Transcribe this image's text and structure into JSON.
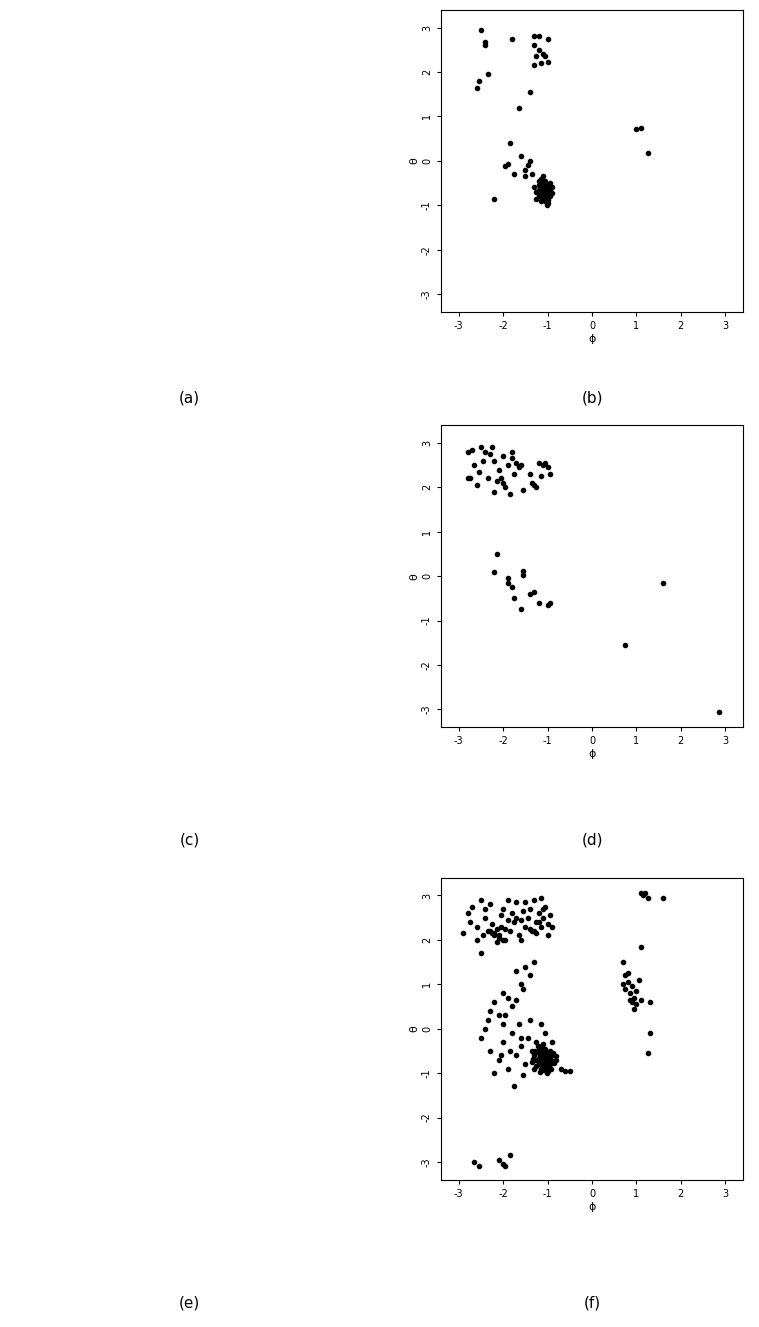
{
  "images": [
    {
      "caption": "(a)"
    },
    {
      "caption": "(c)"
    },
    {
      "caption": "(e)"
    }
  ],
  "chart_data": [
    {
      "type": "scatter",
      "caption": "(b)",
      "x_label": "ϕ",
      "y_label": "θ",
      "color": "#000000",
      "marker": "o",
      "xlim": [
        -3.4,
        3.4
      ],
      "ylim": [
        -3.4,
        3.4
      ],
      "xticks": [
        -3,
        -2,
        -1,
        0,
        1,
        2,
        3
      ],
      "yticks": [
        -3,
        -2,
        -1,
        0,
        1,
        2,
        3
      ],
      "points": [
        [
          -2.5,
          2.95
        ],
        [
          -2.6,
          1.65
        ],
        [
          -2.55,
          1.8
        ],
        [
          -2.4,
          2.6
        ],
        [
          -2.4,
          2.68
        ],
        [
          -2.35,
          1.95
        ],
        [
          -1.8,
          2.75
        ],
        [
          -1.3,
          2.8
        ],
        [
          -1.2,
          2.82
        ],
        [
          -1.0,
          2.75
        ],
        [
          -1.3,
          2.6
        ],
        [
          -1.25,
          2.35
        ],
        [
          -1.15,
          2.2
        ],
        [
          -1.05,
          2.35
        ],
        [
          -1.0,
          2.22
        ],
        [
          -1.1,
          2.4
        ],
        [
          -1.3,
          2.15
        ],
        [
          -1.4,
          1.55
        ],
        [
          -1.65,
          1.2
        ],
        [
          -1.2,
          2.5
        ],
        [
          -1.85,
          0.4
        ],
        [
          -1.9,
          -0.08
        ],
        [
          -1.95,
          -0.12
        ],
        [
          -1.6,
          0.1
        ],
        [
          -1.75,
          -0.3
        ],
        [
          -1.5,
          -0.2
        ],
        [
          -1.5,
          -0.35
        ],
        [
          -1.45,
          -0.1
        ],
        [
          -1.4,
          0.0
        ],
        [
          -1.35,
          -0.3
        ],
        [
          -2.2,
          -0.85
        ],
        [
          -1.1,
          -0.6
        ],
        [
          -1.05,
          -0.7
        ],
        [
          -1.15,
          -0.65
        ],
        [
          -1.0,
          -0.75
        ],
        [
          -1.2,
          -0.55
        ],
        [
          -0.95,
          -0.8
        ],
        [
          -1.1,
          -0.5
        ],
        [
          -1.05,
          -0.62
        ],
        [
          -1.15,
          -0.78
        ],
        [
          -1.25,
          -0.7
        ],
        [
          -1.0,
          -0.58
        ],
        [
          -0.9,
          -0.72
        ],
        [
          -1.1,
          -0.85
        ],
        [
          -1.2,
          -0.45
        ],
        [
          -1.05,
          -0.9
        ],
        [
          -1.15,
          -0.4
        ],
        [
          -0.95,
          -0.65
        ],
        [
          -1.1,
          -0.68
        ],
        [
          -1.0,
          -0.88
        ],
        [
          -1.2,
          -0.8
        ],
        [
          -1.3,
          -0.6
        ],
        [
          -1.05,
          -0.52
        ],
        [
          -1.1,
          -0.35
        ],
        [
          -0.9,
          -0.6
        ],
        [
          -1.15,
          -0.72
        ],
        [
          -1.0,
          -0.95
        ],
        [
          -1.05,
          -0.8
        ],
        [
          -1.2,
          -0.65
        ],
        [
          -1.1,
          -0.75
        ],
        [
          -0.95,
          -0.5
        ],
        [
          -1.25,
          -0.85
        ],
        [
          -1.1,
          -0.58
        ],
        [
          -1.0,
          -0.7
        ],
        [
          -1.15,
          -0.9
        ],
        [
          -1.05,
          -0.45
        ],
        [
          -1.2,
          -0.75
        ],
        [
          -0.98,
          -0.82
        ],
        [
          -1.12,
          -0.62
        ],
        [
          -1.08,
          -0.68
        ],
        [
          -1.02,
          -1.0
        ],
        [
          1.0,
          0.72
        ],
        [
          1.1,
          0.73
        ],
        [
          1.25,
          0.18
        ]
      ]
    },
    {
      "type": "scatter",
      "caption": "(d)",
      "x_label": "ϕ",
      "y_label": "θ",
      "color": "#000000",
      "marker": "o",
      "xlim": [
        -3.4,
        3.4
      ],
      "ylim": [
        -3.4,
        3.4
      ],
      "xticks": [
        -3,
        -2,
        -1,
        0,
        1,
        2,
        3
      ],
      "yticks": [
        -3,
        -2,
        -1,
        0,
        1,
        2,
        3
      ],
      "points": [
        [
          -2.8,
          2.8
        ],
        [
          -2.7,
          2.85
        ],
        [
          -2.6,
          2.05
        ],
        [
          -2.5,
          2.9
        ],
        [
          -2.4,
          2.8
        ],
        [
          -2.3,
          2.75
        ],
        [
          -2.2,
          2.6
        ],
        [
          -2.1,
          2.4
        ],
        [
          -2.0,
          2.7
        ],
        [
          -1.9,
          2.5
        ],
        [
          -1.8,
          2.65
        ],
        [
          -1.7,
          2.55
        ],
        [
          -1.6,
          2.5
        ],
        [
          -2.75,
          2.2
        ],
        [
          -2.55,
          2.35
        ],
        [
          -2.35,
          2.2
        ],
        [
          -2.15,
          2.15
        ],
        [
          -1.95,
          2.0
        ],
        [
          -1.75,
          2.3
        ],
        [
          -1.55,
          1.95
        ],
        [
          -2.65,
          2.5
        ],
        [
          -2.45,
          2.6
        ],
        [
          -2.25,
          2.9
        ],
        [
          -2.05,
          2.2
        ],
        [
          -1.85,
          1.85
        ],
        [
          -1.65,
          2.45
        ],
        [
          -2.2,
          1.9
        ],
        [
          -2.0,
          2.1
        ],
        [
          -1.8,
          2.8
        ],
        [
          -1.3,
          2.05
        ],
        [
          -1.2,
          2.55
        ],
        [
          -1.1,
          2.5
        ],
        [
          -1.0,
          2.45
        ],
        [
          -0.95,
          2.3
        ],
        [
          -1.15,
          2.25
        ],
        [
          -1.25,
          2.0
        ],
        [
          -1.05,
          2.55
        ],
        [
          -1.4,
          2.3
        ],
        [
          -1.35,
          2.1
        ],
        [
          -2.8,
          2.2
        ],
        [
          -2.15,
          0.5
        ],
        [
          -2.2,
          0.1
        ],
        [
          -1.9,
          -0.05
        ],
        [
          -1.8,
          -0.25
        ],
        [
          -1.75,
          -0.5
        ],
        [
          -1.6,
          -0.75
        ],
        [
          -1.55,
          0.12
        ],
        [
          -1.55,
          0.02
        ],
        [
          -1.4,
          -0.4
        ],
        [
          -1.3,
          -0.35
        ],
        [
          -1.2,
          -0.6
        ],
        [
          -1.0,
          -0.65
        ],
        [
          -0.95,
          -0.6
        ],
        [
          -1.9,
          -0.15
        ],
        [
          1.6,
          -0.15
        ],
        [
          0.75,
          -1.55
        ],
        [
          2.85,
          -3.05
        ]
      ]
    },
    {
      "type": "scatter",
      "caption": "(f)",
      "x_label": "ϕ",
      "y_label": "θ",
      "color": "#000000",
      "marker": "o",
      "xlim": [
        -3.4,
        3.4
      ],
      "ylim": [
        -3.4,
        3.4
      ],
      "xticks": [
        -3,
        -2,
        -1,
        0,
        1,
        2,
        3
      ],
      "yticks": [
        -3,
        -2,
        -1,
        0,
        1,
        2,
        3
      ],
      "points": [
        [
          -2.9,
          2.15
        ],
        [
          -2.8,
          2.6
        ],
        [
          -2.75,
          2.4
        ],
        [
          -2.7,
          2.75
        ],
        [
          -2.6,
          2.3
        ],
        [
          -2.5,
          2.9
        ],
        [
          -2.45,
          2.1
        ],
        [
          -2.4,
          2.5
        ],
        [
          -2.35,
          2.2
        ],
        [
          -2.3,
          2.8
        ],
        [
          -2.25,
          2.15
        ],
        [
          -2.2,
          2.1
        ],
        [
          -2.15,
          2.25
        ],
        [
          -2.1,
          2.05
        ],
        [
          -2.05,
          2.3
        ],
        [
          -2.0,
          2.7
        ],
        [
          -1.95,
          2.0
        ],
        [
          -1.9,
          2.9
        ],
        [
          -1.85,
          2.2
        ],
        [
          -1.8,
          2.6
        ],
        [
          -1.75,
          2.4
        ],
        [
          -1.7,
          2.85
        ],
        [
          -1.65,
          2.1
        ],
        [
          -1.6,
          2.45
        ],
        [
          -1.55,
          2.65
        ],
        [
          -1.5,
          2.3
        ],
        [
          -1.45,
          2.5
        ],
        [
          -1.4,
          2.7
        ],
        [
          -1.35,
          2.2
        ],
        [
          -1.3,
          2.9
        ],
        [
          -1.25,
          2.4
        ],
        [
          -1.2,
          2.6
        ],
        [
          -1.15,
          2.3
        ],
        [
          -1.1,
          2.5
        ],
        [
          -1.05,
          2.75
        ],
        [
          -1.0,
          2.35
        ],
        [
          -0.95,
          2.55
        ],
        [
          -0.9,
          2.3
        ],
        [
          -2.3,
          2.2
        ],
        [
          -2.2,
          2.15
        ],
        [
          -2.1,
          2.1
        ],
        [
          -2.0,
          2.0
        ],
        [
          -1.9,
          2.45
        ],
        [
          -1.3,
          2.2
        ],
        [
          -1.2,
          2.4
        ],
        [
          -1.1,
          2.7
        ],
        [
          -1.0,
          2.1
        ],
        [
          -2.4,
          2.7
        ],
        [
          -2.6,
          2.0
        ],
        [
          -2.25,
          2.35
        ],
        [
          -2.15,
          1.95
        ],
        [
          -1.4,
          2.25
        ],
        [
          -1.5,
          2.85
        ],
        [
          -1.6,
          2.0
        ],
        [
          -1.7,
          2.5
        ],
        [
          -2.5,
          1.7
        ],
        [
          -1.15,
          2.95
        ],
        [
          -1.25,
          2.15
        ],
        [
          -2.05,
          2.55
        ],
        [
          -1.95,
          2.25
        ],
        [
          -1.5,
          1.4
        ],
        [
          -1.4,
          1.2
        ],
        [
          -1.6,
          1.0
        ],
        [
          -1.3,
          1.5
        ],
        [
          -1.7,
          1.3
        ],
        [
          -2.0,
          0.8
        ],
        [
          -1.9,
          0.7
        ],
        [
          -2.2,
          0.6
        ],
        [
          -1.8,
          0.5
        ],
        [
          -2.1,
          0.3
        ],
        [
          -2.3,
          0.4
        ],
        [
          -2.0,
          0.1
        ],
        [
          -2.4,
          0.0
        ],
        [
          -1.7,
          0.65
        ],
        [
          -1.55,
          0.9
        ],
        [
          -2.5,
          -0.2
        ],
        [
          -2.3,
          -0.5
        ],
        [
          -2.1,
          -0.7
        ],
        [
          -2.0,
          -0.3
        ],
        [
          -1.9,
          -0.9
        ],
        [
          -1.8,
          -0.1
        ],
        [
          -1.7,
          -0.6
        ],
        [
          -1.6,
          -0.4
        ],
        [
          -1.5,
          -0.8
        ],
        [
          -1.45,
          -0.2
        ],
        [
          -1.4,
          0.2
        ],
        [
          -1.35,
          -0.5
        ],
        [
          -1.3,
          -0.9
        ],
        [
          -1.75,
          -1.3
        ],
        [
          -2.2,
          -1.0
        ],
        [
          -1.55,
          -1.05
        ],
        [
          -1.65,
          0.1
        ],
        [
          -1.85,
          -0.5
        ],
        [
          -2.05,
          -0.6
        ],
        [
          -1.25,
          -0.3
        ],
        [
          -0.7,
          -0.9
        ],
        [
          -0.6,
          -0.95
        ],
        [
          -0.8,
          -0.7
        ],
        [
          -0.5,
          -0.95
        ],
        [
          -1.95,
          0.3
        ],
        [
          -2.35,
          0.2
        ],
        [
          -1.6,
          -0.2
        ],
        [
          -1.15,
          0.1
        ],
        [
          -1.05,
          -0.1
        ],
        [
          -0.9,
          -0.3
        ],
        [
          -1.1,
          -0.6
        ],
        [
          -1.05,
          -0.7
        ],
        [
          -1.15,
          -0.65
        ],
        [
          -1.0,
          -0.75
        ],
        [
          -1.2,
          -0.55
        ],
        [
          -0.95,
          -0.8
        ],
        [
          -1.1,
          -0.5
        ],
        [
          -1.05,
          -0.62
        ],
        [
          -1.15,
          -0.78
        ],
        [
          -1.25,
          -0.7
        ],
        [
          -1.0,
          -0.58
        ],
        [
          -0.9,
          -0.72
        ],
        [
          -1.1,
          -0.85
        ],
        [
          -1.2,
          -0.45
        ],
        [
          -1.05,
          -0.9
        ],
        [
          -1.15,
          -0.4
        ],
        [
          -0.95,
          -0.65
        ],
        [
          -1.1,
          -0.68
        ],
        [
          -1.0,
          -0.88
        ],
        [
          -1.2,
          -0.8
        ],
        [
          -1.3,
          -0.6
        ],
        [
          -1.05,
          -0.52
        ],
        [
          -1.1,
          -0.35
        ],
        [
          -0.9,
          -0.6
        ],
        [
          -1.15,
          -0.72
        ],
        [
          -1.0,
          -0.95
        ],
        [
          -1.05,
          -0.8
        ],
        [
          -1.2,
          -0.65
        ],
        [
          -1.1,
          -0.75
        ],
        [
          -0.95,
          -0.5
        ],
        [
          -1.25,
          -0.85
        ],
        [
          -1.1,
          -0.58
        ],
        [
          -1.0,
          -0.7
        ],
        [
          -1.15,
          -0.9
        ],
        [
          -1.05,
          -0.45
        ],
        [
          -1.2,
          -0.75
        ],
        [
          -0.98,
          -0.82
        ],
        [
          -1.12,
          -0.62
        ],
        [
          -1.08,
          -0.68
        ],
        [
          -1.02,
          -1.0
        ],
        [
          -0.85,
          -0.78
        ],
        [
          -0.88,
          -0.55
        ],
        [
          -1.35,
          -0.75
        ],
        [
          -1.28,
          -0.5
        ],
        [
          -0.92,
          -0.9
        ],
        [
          -1.18,
          -0.98
        ],
        [
          -1.22,
          -0.38
        ],
        [
          -0.82,
          -0.62
        ],
        [
          -1.32,
          -0.68
        ],
        [
          -1.08,
          -0.92
        ],
        [
          0.7,
          1.0
        ],
        [
          0.75,
          0.9
        ],
        [
          0.8,
          1.05
        ],
        [
          0.85,
          0.8
        ],
        [
          0.9,
          0.95
        ],
        [
          0.95,
          0.7
        ],
        [
          1.0,
          0.85
        ],
        [
          1.05,
          1.1
        ],
        [
          0.7,
          1.5
        ],
        [
          0.8,
          1.25
        ],
        [
          0.9,
          0.6
        ],
        [
          1.0,
          0.55
        ],
        [
          1.1,
          0.65
        ],
        [
          1.3,
          0.6
        ],
        [
          0.95,
          0.45
        ],
        [
          0.85,
          0.65
        ],
        [
          1.1,
          1.85
        ],
        [
          0.75,
          1.2
        ],
        [
          1.1,
          3.05
        ],
        [
          1.15,
          3.0
        ],
        [
          1.2,
          3.05
        ],
        [
          1.25,
          2.95
        ],
        [
          1.6,
          2.95
        ],
        [
          1.25,
          -0.55
        ],
        [
          1.3,
          -0.1
        ],
        [
          -2.65,
          -3.0
        ],
        [
          -2.55,
          -3.1
        ],
        [
          -2.1,
          -2.95
        ],
        [
          -2.0,
          -3.05
        ],
        [
          -1.95,
          -3.1
        ],
        [
          -1.85,
          -2.85
        ]
      ]
    }
  ]
}
